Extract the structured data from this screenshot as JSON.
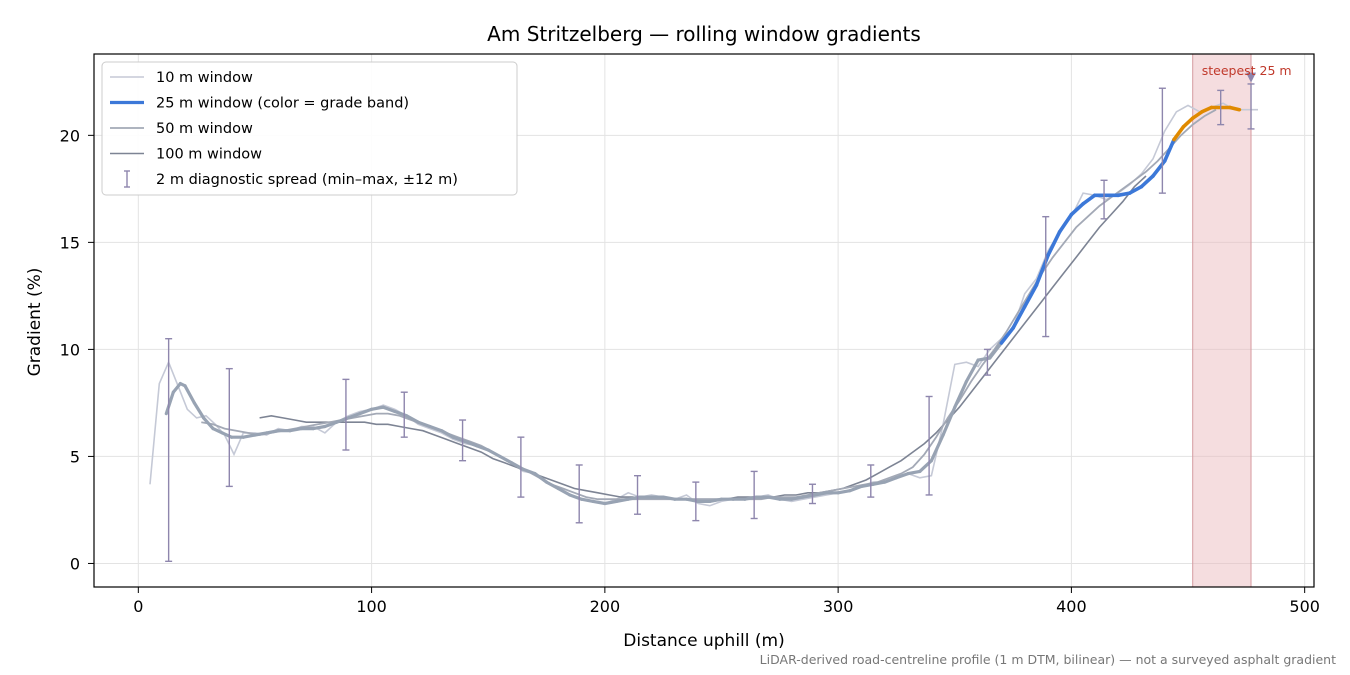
{
  "chart_data": {
    "type": "line",
    "title": "Am Stritzelberg — rolling window gradients",
    "xlabel": "Distance uphill (m)",
    "ylabel": "Gradient (%)",
    "xlim": [
      -19,
      504
    ],
    "ylim": [
      -1.1,
      23.8
    ],
    "xticks": [
      0,
      100,
      200,
      300,
      400,
      500
    ],
    "yticks": [
      0,
      5,
      10,
      15,
      20
    ],
    "grid": true,
    "legend_position": "top-left",
    "footnote": "LiDAR-derived road-centreline profile (1 m DTM, bilinear) — not a surveyed asphalt gradient",
    "steepest_band": {
      "x_start": 452,
      "x_end": 477,
      "label": "steepest 25 m",
      "marker_x": 477,
      "marker_y": 22.6,
      "color": "#e8b4b8"
    },
    "series": [
      {
        "name": "10 m window",
        "color": "#c5c9d6",
        "x": [
          5,
          9,
          13,
          17,
          21,
          25,
          29,
          33,
          37,
          41,
          45,
          50,
          55,
          60,
          65,
          70,
          75,
          80,
          85,
          90,
          95,
          100,
          105,
          110,
          115,
          120,
          125,
          130,
          135,
          140,
          145,
          150,
          155,
          160,
          165,
          170,
          175,
          180,
          185,
          190,
          195,
          200,
          205,
          210,
          215,
          220,
          225,
          230,
          235,
          240,
          245,
          250,
          255,
          260,
          265,
          270,
          275,
          280,
          285,
          290,
          295,
          300,
          305,
          310,
          315,
          320,
          325,
          330,
          335,
          340,
          345,
          350,
          355,
          360,
          365,
          370,
          375,
          380,
          385,
          390,
          395,
          400,
          405,
          410,
          415,
          420,
          425,
          430,
          435,
          440,
          445,
          450,
          455,
          460,
          465,
          470,
          475,
          480
        ],
        "y": [
          3.7,
          8.4,
          9.4,
          8.3,
          7.2,
          6.8,
          6.9,
          6.5,
          6.0,
          5.1,
          6.1,
          6.1,
          6.0,
          6.3,
          6.2,
          6.4,
          6.4,
          6.1,
          6.6,
          6.9,
          7.1,
          7.2,
          7.4,
          7.2,
          6.9,
          6.5,
          6.3,
          6.1,
          5.8,
          5.6,
          5.5,
          5.3,
          5.0,
          4.7,
          4.3,
          4.2,
          3.8,
          3.5,
          3.2,
          3.0,
          2.9,
          2.8,
          3.0,
          3.3,
          3.1,
          3.2,
          3.1,
          3.0,
          3.2,
          2.8,
          2.7,
          2.9,
          3.0,
          3.0,
          3.1,
          3.2,
          3.0,
          2.9,
          3.0,
          3.1,
          3.2,
          3.3,
          3.4,
          3.6,
          3.8,
          3.8,
          4.0,
          4.2,
          4.0,
          4.1,
          6.5,
          9.3,
          9.4,
          9.2,
          10.0,
          10.5,
          11.0,
          12.6,
          13.3,
          14.6,
          15.5,
          16.2,
          17.3,
          17.2,
          17.0,
          17.3,
          17.7,
          18.2,
          18.9,
          20.2,
          21.1,
          21.4,
          21.1,
          21.3,
          21.5,
          21.2,
          21.2,
          21.2
        ]
      },
      {
        "name": "25 m window (color = grade band)",
        "color": "#3c78d8",
        "band_colors": {
          "gray": "#98a3b3",
          "blue": "#3c78d8",
          "orange": "#e08a00"
        },
        "x": [
          12,
          15,
          18,
          20,
          24,
          28,
          32,
          36,
          40,
          45,
          50,
          55,
          60,
          65,
          70,
          75,
          80,
          85,
          90,
          95,
          100,
          105,
          110,
          115,
          120,
          125,
          130,
          135,
          140,
          145,
          150,
          155,
          160,
          165,
          170,
          175,
          180,
          185,
          190,
          195,
          200,
          205,
          210,
          215,
          220,
          225,
          230,
          235,
          240,
          245,
          250,
          255,
          260,
          265,
          270,
          275,
          280,
          285,
          290,
          295,
          300,
          305,
          310,
          315,
          320,
          325,
          330,
          335,
          340,
          345,
          350,
          355,
          360,
          365,
          370,
          375,
          380,
          385,
          390,
          395,
          400,
          405,
          410,
          415,
          420,
          425,
          430,
          435,
          440,
          444,
          448,
          452,
          456,
          460,
          464,
          468,
          472
        ],
        "y": [
          7.0,
          8.0,
          8.4,
          8.3,
          7.5,
          6.8,
          6.3,
          6.1,
          5.9,
          5.9,
          6.0,
          6.1,
          6.2,
          6.2,
          6.3,
          6.3,
          6.4,
          6.6,
          6.8,
          7.0,
          7.2,
          7.3,
          7.1,
          6.9,
          6.6,
          6.4,
          6.2,
          5.9,
          5.7,
          5.5,
          5.3,
          5.0,
          4.7,
          4.4,
          4.2,
          3.8,
          3.5,
          3.2,
          3.0,
          2.9,
          2.8,
          2.9,
          3.0,
          3.1,
          3.1,
          3.1,
          3.0,
          3.0,
          2.9,
          2.9,
          3.0,
          3.0,
          3.0,
          3.1,
          3.1,
          3.0,
          3.0,
          3.1,
          3.2,
          3.3,
          3.3,
          3.4,
          3.6,
          3.7,
          3.8,
          4.0,
          4.2,
          4.3,
          4.8,
          6.0,
          7.3,
          8.5,
          9.5,
          9.6,
          10.3,
          11.0,
          12.0,
          13.0,
          14.4,
          15.5,
          16.3,
          16.8,
          17.2,
          17.2,
          17.2,
          17.3,
          17.6,
          18.1,
          18.8,
          19.8,
          20.4,
          20.8,
          21.1,
          21.3,
          21.3,
          21.3,
          21.2
        ]
      },
      {
        "name": "50 m window",
        "color": "#a3a9b6",
        "x": [
          27,
          32,
          37,
          42,
          47,
          52,
          57,
          62,
          67,
          72,
          77,
          82,
          87,
          92,
          97,
          102,
          107,
          112,
          117,
          122,
          127,
          132,
          137,
          142,
          147,
          152,
          157,
          162,
          167,
          172,
          177,
          182,
          187,
          192,
          197,
          202,
          207,
          212,
          217,
          222,
          227,
          232,
          237,
          242,
          247,
          252,
          257,
          262,
          267,
          272,
          277,
          282,
          287,
          292,
          297,
          302,
          307,
          312,
          317,
          322,
          327,
          332,
          337,
          342,
          347,
          352,
          357,
          362,
          367,
          372,
          377,
          382,
          387,
          392,
          397,
          402,
          407,
          412,
          417,
          422,
          427,
          432,
          437,
          442,
          447,
          452,
          457,
          462
        ],
        "y": [
          6.6,
          6.5,
          6.3,
          6.2,
          6.1,
          6.0,
          6.1,
          6.2,
          6.3,
          6.4,
          6.5,
          6.6,
          6.7,
          6.8,
          6.9,
          7.0,
          7.0,
          6.9,
          6.7,
          6.5,
          6.3,
          6.1,
          5.9,
          5.7,
          5.5,
          5.2,
          4.9,
          4.6,
          4.3,
          4.0,
          3.7,
          3.5,
          3.3,
          3.1,
          3.0,
          3.0,
          3.0,
          3.0,
          3.0,
          3.0,
          3.0,
          3.0,
          3.0,
          3.0,
          3.0,
          3.0,
          3.0,
          3.0,
          3.0,
          3.1,
          3.1,
          3.1,
          3.2,
          3.3,
          3.4,
          3.5,
          3.6,
          3.7,
          3.8,
          4.0,
          4.2,
          4.5,
          5.1,
          5.9,
          6.8,
          7.6,
          8.5,
          9.3,
          10.0,
          10.8,
          11.7,
          12.6,
          13.5,
          14.3,
          15.0,
          15.7,
          16.2,
          16.7,
          17.1,
          17.5,
          17.9,
          18.3,
          18.8,
          19.4,
          20.0,
          20.5,
          20.9,
          21.2
        ]
      },
      {
        "name": "100 m window",
        "color": "#7d8494",
        "x": [
          52,
          57,
          62,
          67,
          72,
          77,
          82,
          87,
          92,
          97,
          102,
          107,
          112,
          117,
          122,
          127,
          132,
          137,
          142,
          147,
          152,
          157,
          162,
          167,
          172,
          177,
          182,
          187,
          192,
          197,
          202,
          207,
          212,
          217,
          222,
          227,
          232,
          237,
          242,
          247,
          252,
          257,
          262,
          267,
          272,
          277,
          282,
          287,
          292,
          297,
          302,
          307,
          312,
          317,
          322,
          327,
          332,
          337,
          342,
          347,
          352,
          357,
          362,
          367,
          372,
          377,
          382,
          387,
          392,
          397,
          402,
          407,
          412,
          417,
          422,
          427,
          432
        ],
        "y": [
          6.8,
          6.9,
          6.8,
          6.7,
          6.6,
          6.6,
          6.6,
          6.6,
          6.6,
          6.6,
          6.5,
          6.5,
          6.4,
          6.3,
          6.2,
          6.0,
          5.8,
          5.6,
          5.4,
          5.2,
          4.9,
          4.7,
          4.5,
          4.3,
          4.1,
          3.9,
          3.7,
          3.5,
          3.4,
          3.3,
          3.2,
          3.1,
          3.1,
          3.0,
          3.0,
          3.0,
          3.0,
          3.0,
          3.0,
          3.0,
          3.0,
          3.1,
          3.1,
          3.1,
          3.1,
          3.2,
          3.2,
          3.3,
          3.3,
          3.4,
          3.5,
          3.7,
          3.9,
          4.2,
          4.5,
          4.8,
          5.2,
          5.6,
          6.1,
          6.7,
          7.3,
          8.0,
          8.7,
          9.4,
          10.1,
          10.8,
          11.5,
          12.2,
          12.9,
          13.6,
          14.3,
          15.0,
          15.7,
          16.3,
          16.9,
          17.6,
          18.1
        ]
      }
    ],
    "error_bars": {
      "name": "2 m diagnostic spread (min–max, ±12 m)",
      "color": "#8e86ad",
      "x": [
        13,
        39,
        89,
        114,
        139,
        164,
        189,
        214,
        239,
        264,
        289,
        314,
        339,
        364,
        389,
        414,
        439,
        464,
        477
      ],
      "low": [
        0.1,
        3.6,
        5.3,
        5.9,
        4.8,
        3.1,
        1.9,
        2.3,
        2.0,
        2.1,
        2.8,
        3.1,
        3.2,
        8.8,
        10.6,
        16.1,
        17.3,
        20.5,
        20.3
      ],
      "high": [
        10.5,
        9.1,
        8.6,
        8.0,
        6.7,
        5.9,
        4.6,
        4.1,
        3.8,
        4.3,
        3.7,
        4.6,
        7.8,
        10.0,
        16.2,
        17.9,
        22.2,
        22.1,
        22.4
      ]
    }
  }
}
